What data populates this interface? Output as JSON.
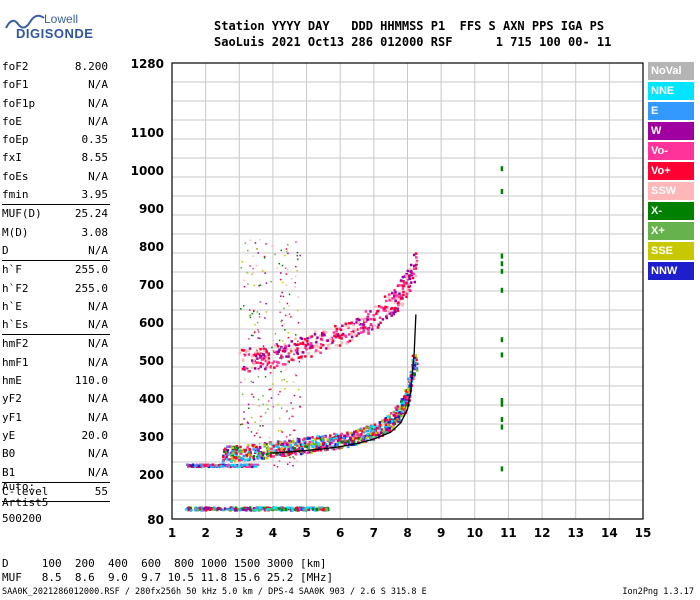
{
  "logo": {
    "line1": "Lowell",
    "line2": "DIGISONDE"
  },
  "header": {
    "line1": "Station YYYY DAY   DDD HHMMSS P1  FFS S AXN PPS IGA PS",
    "line2": "SaoLuis 2021 Oct13 286 012000 RSF      1 715 100 00- 11"
  },
  "params": [
    {
      "label": "foF2",
      "value": "8.200"
    },
    {
      "label": "foF1",
      "value": "N/A"
    },
    {
      "label": "foF1p",
      "value": "N/A"
    },
    {
      "label": "foE",
      "value": "N/A"
    },
    {
      "label": "foEp",
      "value": "0.35"
    },
    {
      "label": "fxI",
      "value": "8.55"
    },
    {
      "label": "foEs",
      "value": "N/A"
    },
    {
      "label": "fmin",
      "value": "3.95",
      "sep_after": true
    },
    {
      "label": "MUF(D)",
      "value": "25.24"
    },
    {
      "label": "M(D)",
      "value": "3.08"
    },
    {
      "label": "D",
      "value": "N/A",
      "sep_after": true
    },
    {
      "label": "h`F",
      "value": "255.0"
    },
    {
      "label": "h`F2",
      "value": "255.0"
    },
    {
      "label": "h`E",
      "value": "N/A"
    },
    {
      "label": "h`Es",
      "value": "N/A",
      "sep_after": true
    },
    {
      "label": "hmF2",
      "value": "N/A"
    },
    {
      "label": "hmF1",
      "value": "N/A"
    },
    {
      "label": "hmE",
      "value": "110.0"
    },
    {
      "label": "yF2",
      "value": "N/A"
    },
    {
      "label": "yF1",
      "value": "N/A"
    },
    {
      "label": "yE",
      "value": "20.0"
    },
    {
      "label": "B0",
      "value": "N/A"
    },
    {
      "label": "B1",
      "value": "N/A",
      "sep_after": true
    },
    {
      "label": "C-level",
      "value": "55",
      "sep_after": true
    }
  ],
  "auto": {
    "line1": "Auto:",
    "line2": "Artist5",
    "line3": "500200"
  },
  "distance_table": {
    "row1": "D     100  200  400  600  800 1000 1500 3000 [km]",
    "row2": "MUF   8.5  8.6  9.0  9.7 10.5 11.8 15.6 25.2 [MHz]"
  },
  "footer": "SAA0K_2021286012000.RSF / 280fx256h 50 kHz 5.0 km / DPS-4 SAA0K 903 / 2.6 S 315.8 E",
  "version": "Ion2Png 1.3.17",
  "legend": [
    {
      "label": "NoVal",
      "color": "#b4b4b4"
    },
    {
      "label": "NNE",
      "color": "#00e5ff"
    },
    {
      "label": "E",
      "color": "#3399ff"
    },
    {
      "label": "W",
      "color": "#a000a0"
    },
    {
      "label": "Vo-",
      "color": "#ff3399"
    },
    {
      "label": "Vo+",
      "color": "#ff0033"
    },
    {
      "label": "SSW",
      "color": "#ffb6b6"
    },
    {
      "label": "X-",
      "color": "#008000"
    },
    {
      "label": "X+",
      "color": "#66b24d"
    },
    {
      "label": "SSE",
      "color": "#c8c800"
    },
    {
      "label": "NNW",
      "color": "#1e1ecc"
    }
  ],
  "chart_data": {
    "type": "scatter",
    "xlim": [
      1,
      15
    ],
    "x_ticks": [
      1,
      2,
      3,
      4,
      5,
      6,
      7,
      8,
      9,
      10,
      11,
      12,
      13,
      14,
      15
    ],
    "ylim": [
      80,
      1280
    ],
    "y_ticks": [
      80,
      200,
      300,
      400,
      500,
      600,
      700,
      800,
      900,
      1000,
      1100,
      1280
    ],
    "y_scale": "non-linear (ionogram virtual height)",
    "grid": true,
    "trace_F_ordinary": {
      "x": [
        2.5,
        3.0,
        3.5,
        4.0,
        4.5,
        5.0,
        5.5,
        6.0,
        6.5,
        7.0,
        7.5,
        7.8,
        8.0,
        8.2
      ],
      "y": [
        255,
        258,
        262,
        268,
        273,
        278,
        285,
        292,
        300,
        315,
        340,
        370,
        420,
        500
      ]
    },
    "trace_F_multihop": {
      "x": [
        3.0,
        3.5,
        4.0,
        4.5,
        5.0,
        5.5,
        6.0,
        6.5,
        7.0,
        7.5,
        7.8,
        8.0,
        8.2
      ],
      "y": [
        500,
        505,
        515,
        525,
        540,
        555,
        570,
        590,
        615,
        650,
        680,
        710,
        760
      ]
    },
    "trace_Es_low": {
      "x": [
        1.4,
        5.6
      ],
      "y": [
        110,
        110
      ]
    },
    "fitted_curve": {
      "x": [
        3.9,
        4.5,
        5.0,
        5.5,
        6.0,
        6.5,
        7.0,
        7.5,
        7.8,
        8.0,
        8.1,
        8.2,
        8.25
      ],
      "y": [
        255,
        258,
        262,
        266,
        272,
        280,
        292,
        310,
        335,
        370,
        420,
        520,
        620
      ]
    }
  }
}
